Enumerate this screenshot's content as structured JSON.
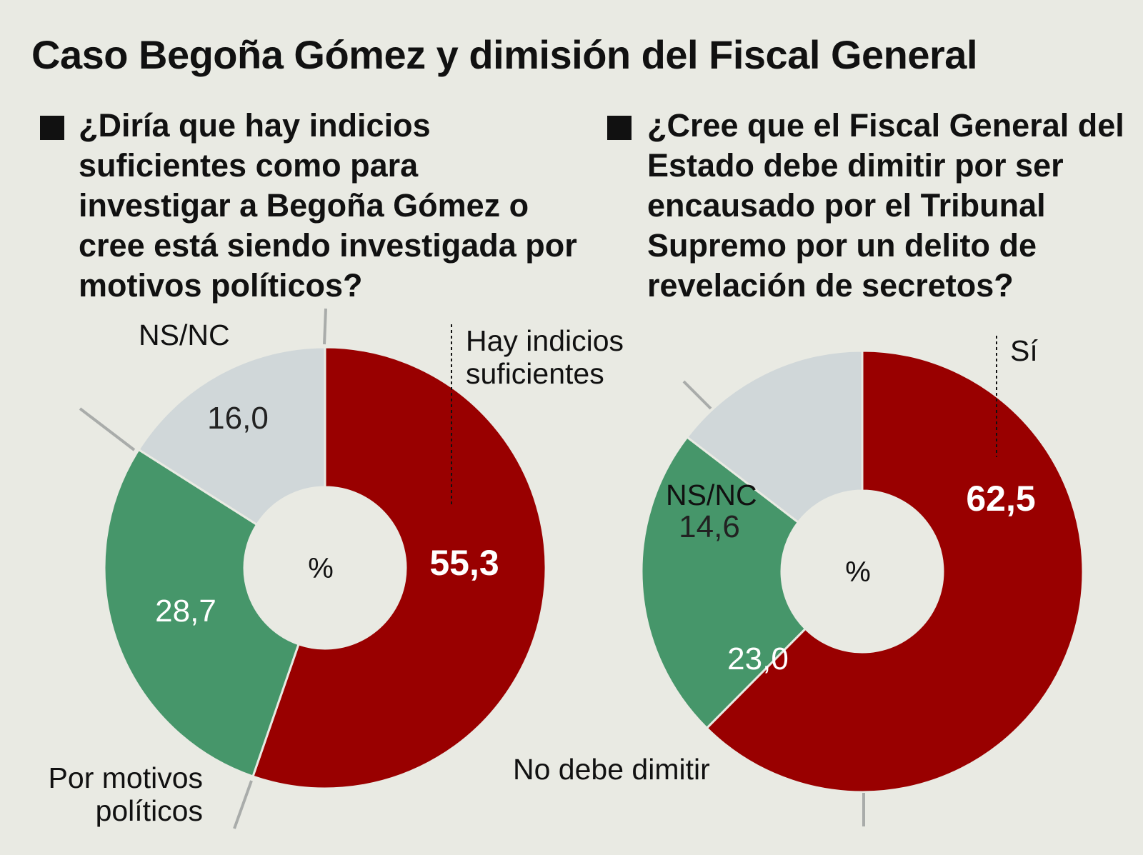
{
  "title": "Caso Begoña Gómez y dimisión del Fiscal General",
  "colors": {
    "red": "#990000",
    "green": "#46966a",
    "gray": "#d0d7d9",
    "background": "#e9eae3"
  },
  "chart_data": [
    {
      "type": "pie",
      "question": "¿Diría que hay indicios suficientes como para investigar a Begoña Gómez o cree está siendo investigada por motivos políticos?",
      "center_label": "%",
      "slices": [
        {
          "label": "Hay indicios suficientes",
          "value": 55.3,
          "value_text": "55,3",
          "color": "#990000"
        },
        {
          "label": "Por motivos políticos",
          "value": 28.7,
          "value_text": "28,7",
          "color": "#46966a"
        },
        {
          "label": "NS/NC",
          "value": 16.0,
          "value_text": "16,0",
          "color": "#d0d7d9"
        }
      ]
    },
    {
      "type": "pie",
      "question": "¿Cree que el Fiscal General del Estado debe dimitir por ser encausado por el Tribunal Supremo por un delito de revelación de secretos?",
      "center_label": "%",
      "slices": [
        {
          "label": "Sí",
          "value": 62.5,
          "value_text": "62,5",
          "color": "#990000"
        },
        {
          "label": "No debe dimitir",
          "value": 23.0,
          "value_text": "23,0",
          "color": "#46966a"
        },
        {
          "label": "NS/NC",
          "value": 14.6,
          "value_text": "14,6",
          "color": "#d0d7d9"
        }
      ]
    }
  ]
}
